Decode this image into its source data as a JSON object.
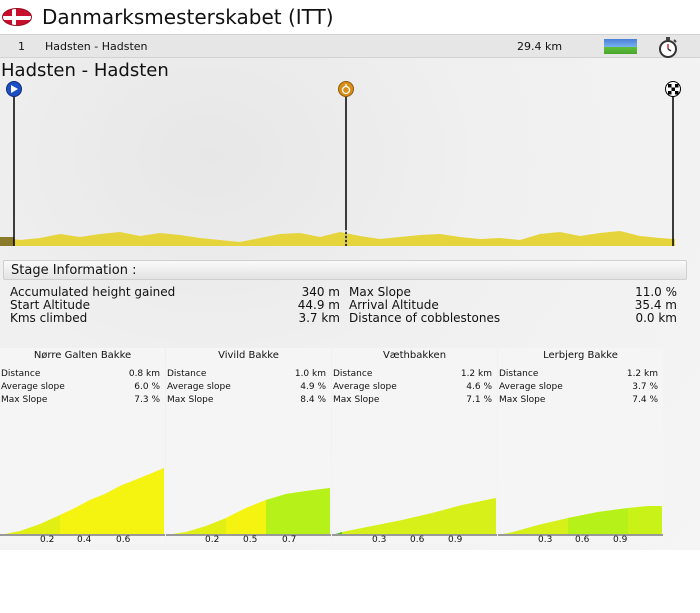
{
  "race": {
    "title": "Danmarksmesterskabet (ITT)",
    "flag_icon": "denmark-flag-icon"
  },
  "stage": {
    "number": "1",
    "route": "Hadsten - Hadsten",
    "distance": "29.4 km",
    "type_icon": "flat-stage-icon",
    "time_trial_icon": "stopwatch-icon"
  },
  "profile": {
    "title": "Hadsten - Hadsten",
    "markers": [
      {
        "icon": "start-marker-icon",
        "km": 0
      },
      {
        "icon": "intermediate-time-marker-icon",
        "km": 15
      },
      {
        "icon": "finish-flag-icon",
        "km": 29.4
      }
    ],
    "fill_color": "#e6d43c",
    "base_color": "#8a7a2a"
  },
  "stage_info": {
    "header": "Stage Information :",
    "rows": [
      {
        "label": "Accumulated height gained",
        "value": "340 m"
      },
      {
        "label": "Start Altitude",
        "value": "44.9 m"
      },
      {
        "label": "Kms climbed",
        "value": "3.7 km"
      },
      {
        "label": "Max Slope",
        "value": "11.0 %"
      },
      {
        "label": "Arrival Altitude",
        "value": "35.4 m"
      },
      {
        "label": "Distance of cobblestones",
        "value": "0.0 km"
      }
    ]
  },
  "climbs": [
    {
      "name": "Nørre Galten Bakke",
      "distance": "0.8 km",
      "avg_slope": "6.0 %",
      "max_slope": "7.3 %",
      "ticks": [
        "0.2",
        "0.4",
        "0.6"
      ]
    },
    {
      "name": "Vivild Bakke",
      "distance": "1.0 km",
      "avg_slope": "4.9 %",
      "max_slope": "8.4 %",
      "ticks": [
        "0.2",
        "0.5",
        "0.7"
      ]
    },
    {
      "name": "Væthbakken",
      "distance": "1.2 km",
      "avg_slope": "4.6 %",
      "max_slope": "7.1 %",
      "ticks": [
        "0.3",
        "0.6",
        "0.9"
      ]
    },
    {
      "name": "Lerbjerg Bakke",
      "distance": "1.2 km",
      "avg_slope": "3.7 %",
      "max_slope": "7.4 %",
      "ticks": [
        "0.3",
        "0.6",
        "0.9"
      ]
    }
  ],
  "climb_labels": {
    "distance": "Distance",
    "avg": "Average slope",
    "max": "Max Slope"
  }
}
